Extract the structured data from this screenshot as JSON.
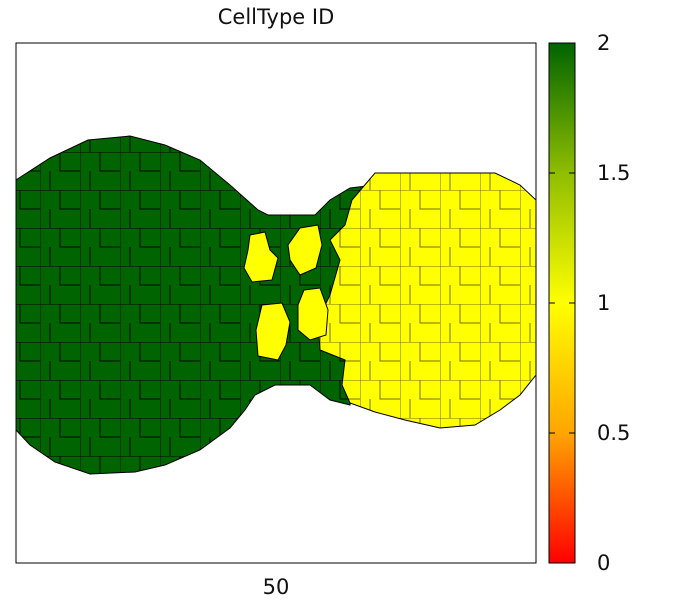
{
  "chart_data": {
    "type": "heatmap",
    "title": "CellType ID",
    "x_tick_labels": [
      "50"
    ],
    "colorbar": {
      "range": [
        0,
        2
      ],
      "ticks": [
        "0",
        "0.5",
        "1",
        "1.5",
        "2"
      ],
      "tick_values": [
        0,
        0.5,
        1,
        1.5,
        2
      ],
      "colors": [
        "#ff0000",
        "#ffa500",
        "#ffff00",
        "#8fbd00",
        "#006400"
      ]
    },
    "cell_types": [
      {
        "value": 2,
        "color": "#006400"
      },
      {
        "value": 1,
        "color": "#ffff00"
      }
    ]
  }
}
